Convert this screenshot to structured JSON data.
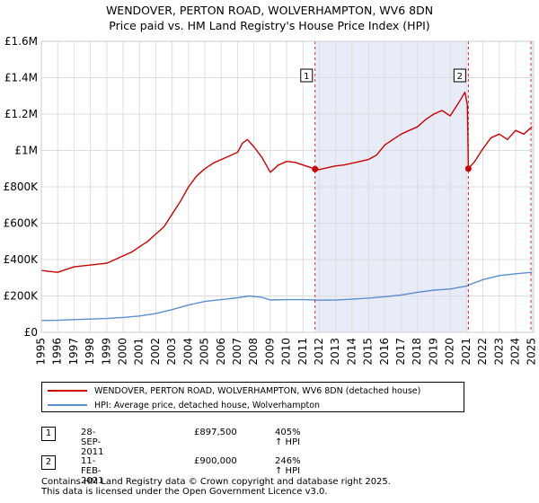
{
  "title_line1": "WENDOVER, PERTON ROAD, WOLVERHAMPTON, WV6 8DN",
  "title_line2": "Price paid vs. HM Land Registry's House Price Index (HPI)",
  "chart_data": {
    "type": "line",
    "xlim": [
      1995,
      2025.1
    ],
    "ylim": [
      0,
      1600000
    ],
    "y_ticks": [
      0,
      200000,
      400000,
      600000,
      800000,
      1000000,
      1200000,
      1400000,
      1600000
    ],
    "y_tick_labels": [
      "£0",
      "£200K",
      "£400K",
      "£600K",
      "£800K",
      "£1M",
      "£1.2M",
      "£1.4M",
      "£1.6M"
    ],
    "x_ticks": [
      1995,
      1996,
      1997,
      1998,
      1999,
      2000,
      2001,
      2002,
      2003,
      2004,
      2005,
      2006,
      2007,
      2008,
      2009,
      2010,
      2011,
      2012,
      2013,
      2014,
      2015,
      2016,
      2017,
      2018,
      2019,
      2020,
      2021,
      2022,
      2023,
      2024,
      2025
    ],
    "x_tick_labels": [
      "1995",
      "1996",
      "1997",
      "1998",
      "1999",
      "2000",
      "2001",
      "2002",
      "2003",
      "2004",
      "2005",
      "2006",
      "2007",
      "2008",
      "2009",
      "2010",
      "2011",
      "2012",
      "2013",
      "2014",
      "2015",
      "2016",
      "2017",
      "2018",
      "2019",
      "2020",
      "2021",
      "2022",
      "2023",
      "2024",
      "2025"
    ],
    "grid": true,
    "shaded_span": [
      2011.74,
      2021.11
    ],
    "series": [
      {
        "name": "WENDOVER, PERTON ROAD, WOLVERHAMPTON, WV6 8DN (detached house)",
        "color": "#cc0000",
        "x": [
          1995.0,
          1995.5,
          1996.0,
          1996.5,
          1997.0,
          1997.5,
          1998.0,
          1998.5,
          1999.0,
          1999.5,
          2000.0,
          2000.5,
          2001.0,
          2001.5,
          2002.0,
          2002.5,
          2003.0,
          2003.5,
          2004.0,
          2004.5,
          2005.0,
          2005.5,
          2006.0,
          2006.5,
          2007.0,
          2007.3,
          2007.6,
          2008.0,
          2008.5,
          2009.0,
          2009.5,
          2010.0,
          2010.5,
          2011.0,
          2011.5,
          2011.74,
          2012.0,
          2012.5,
          2013.0,
          2013.5,
          2014.0,
          2014.5,
          2015.0,
          2015.5,
          2016.0,
          2016.5,
          2017.0,
          2017.5,
          2018.0,
          2018.5,
          2019.0,
          2019.5,
          2020.0,
          2020.5,
          2020.9,
          2021.05,
          2021.11,
          2021.5,
          2022.0,
          2022.5,
          2023.0,
          2023.5,
          2024.0,
          2024.5,
          2025.0
        ],
        "y": [
          340000,
          335000,
          330000,
          345000,
          360000,
          365000,
          370000,
          375000,
          380000,
          400000,
          420000,
          440000,
          470000,
          500000,
          540000,
          580000,
          650000,
          720000,
          800000,
          860000,
          900000,
          930000,
          950000,
          970000,
          990000,
          1040000,
          1060000,
          1020000,
          960000,
          880000,
          920000,
          940000,
          935000,
          920000,
          905000,
          897500,
          895000,
          905000,
          915000,
          920000,
          930000,
          940000,
          950000,
          975000,
          1030000,
          1060000,
          1090000,
          1110000,
          1130000,
          1170000,
          1200000,
          1220000,
          1190000,
          1260000,
          1320000,
          1250000,
          900000,
          940000,
          1010000,
          1070000,
          1090000,
          1060000,
          1110000,
          1090000,
          1130000
        ]
      },
      {
        "name": "HPI: Average price, detached house, Wolverhampton",
        "color": "#5b8fcf",
        "x": [
          1995.0,
          1996.0,
          1997.0,
          1998.0,
          1999.0,
          2000.0,
          2001.0,
          2002.0,
          2003.0,
          2004.0,
          2005.0,
          2006.0,
          2007.0,
          2007.7,
          2008.5,
          2009.0,
          2010.0,
          2011.0,
          2011.74,
          2012.0,
          2013.0,
          2014.0,
          2015.0,
          2016.0,
          2017.0,
          2018.0,
          2019.0,
          2020.0,
          2021.0,
          2021.11,
          2022.0,
          2023.0,
          2024.0,
          2025.0
        ],
        "y": [
          65000,
          66000,
          70000,
          73000,
          76000,
          82000,
          90000,
          103000,
          125000,
          150000,
          170000,
          180000,
          190000,
          200000,
          192000,
          178000,
          180000,
          180000,
          178000,
          177000,
          178000,
          182000,
          188000,
          196000,
          205000,
          220000,
          232000,
          238000,
          255000,
          260000,
          290000,
          312000,
          322000,
          330000
        ]
      }
    ],
    "markers": [
      {
        "label": "1",
        "x": 2011.74,
        "y": 897500,
        "color": "#cc0000"
      },
      {
        "label": "2",
        "x": 2021.11,
        "y": 900000,
        "color": "#cc0000"
      }
    ]
  },
  "legend": {
    "items": [
      {
        "label": "WENDOVER, PERTON ROAD, WOLVERHAMPTON, WV6 8DN (detached house)",
        "color": "#cc0000"
      },
      {
        "label": "HPI: Average price, detached house, Wolverhampton",
        "color": "#5b8fcf"
      }
    ]
  },
  "transactions": [
    {
      "num": "1",
      "date": "28-SEP-2011",
      "price": "£897,500",
      "hpi": "405% ↑ HPI"
    },
    {
      "num": "2",
      "date": "11-FEB-2021",
      "price": "£900,000",
      "hpi": "246% ↑ HPI"
    }
  ],
  "footer_line1": "Contains HM Land Registry data © Crown copyright and database right 2025.",
  "footer_line2": "This data is licensed under the Open Government Licence v3.0."
}
